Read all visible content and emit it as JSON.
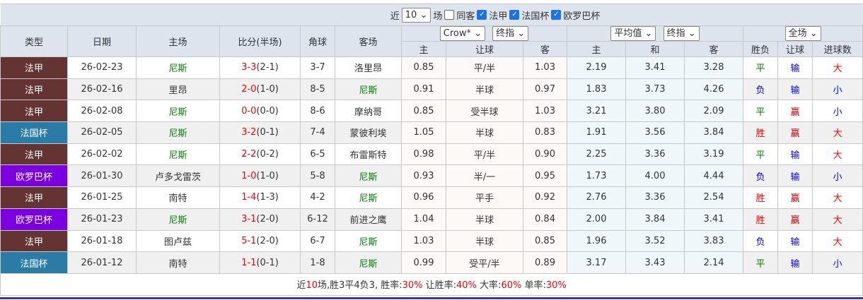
{
  "team_title": "尼斯",
  "filters": {
    "recent_prefix": "近",
    "recent_count": "10",
    "recent_suffix": "场",
    "same_away": "同客",
    "same_away_checked": false,
    "leagues": [
      {
        "label": "法甲",
        "checked": true
      },
      {
        "label": "法国杯",
        "checked": true
      },
      {
        "label": "欧罗巴杯",
        "checked": true
      }
    ]
  },
  "columns": {
    "type": "类型",
    "date": "日期",
    "home": "主场",
    "score": "比分(半场)",
    "corner": "角球",
    "away": "客场",
    "company_select": "Crow*",
    "odds_select1": "终指",
    "avg_select": "平均值",
    "odds_select2": "终指",
    "period_select": "全场",
    "o_home": "主",
    "o_handicap": "让球",
    "o_away": "客",
    "e_home": "主",
    "e_draw": "和",
    "e_away": "客",
    "res_wl": "胜负",
    "res_hc": "让球",
    "res_goals": "进球数"
  },
  "colors": {
    "法甲": "#643432",
    "法国杯": "#2a7ca6",
    "欧罗巴杯": "#7a00e0",
    "team": "#008000",
    "score": "#ff0000"
  },
  "rows": [
    {
      "type": "法甲",
      "date": "26-02-23",
      "home": "尼斯",
      "score": "3-3",
      "half": "(2-1)",
      "corner": "3-7",
      "away": "洛里昂",
      "oh": "0.85",
      "hc": "平/半",
      "oa": "1.03",
      "eh": "2.19",
      "ed": "3.41",
      "ea": "3.28",
      "wl": "平",
      "hr": "输",
      "gl": "大"
    },
    {
      "type": "法甲",
      "date": "26-02-16",
      "home": "里昂",
      "score": "2-0",
      "half": "(1-0)",
      "corner": "8-5",
      "away": "尼斯",
      "oh": "0.91",
      "hc": "半球",
      "oa": "0.97",
      "eh": "1.83",
      "ed": "3.73",
      "ea": "4.26",
      "wl": "负",
      "hr": "输",
      "gl": "小"
    },
    {
      "type": "法甲",
      "date": "26-02-08",
      "home": "尼斯",
      "score": "0-0",
      "half": "(0-0)",
      "corner": "8-6",
      "away": "摩纳哥",
      "oh": "0.85",
      "hc": "受半球",
      "oa": "1.03",
      "eh": "3.21",
      "ed": "3.80",
      "ea": "2.09",
      "wl": "平",
      "hr": "赢",
      "gl": "小"
    },
    {
      "type": "法国杯",
      "date": "26-02-05",
      "home": "尼斯",
      "score": "3-2",
      "half": "(0-1)",
      "corner": "7-4",
      "away": "蒙彼利埃",
      "oh": "1.05",
      "hc": "半球",
      "oa": "0.83",
      "eh": "1.91",
      "ed": "3.56",
      "ea": "3.84",
      "wl": "胜",
      "hr": "赢",
      "gl": "大"
    },
    {
      "type": "法甲",
      "date": "26-02-02",
      "home": "尼斯",
      "score": "2-2",
      "half": "(0-2)",
      "corner": "6-5",
      "away": "布雷斯特",
      "oh": "0.98",
      "hc": "平/半",
      "oa": "0.90",
      "eh": "2.25",
      "ed": "3.36",
      "ea": "3.19",
      "wl": "平",
      "hr": "输",
      "gl": "大"
    },
    {
      "type": "欧罗巴杯",
      "date": "26-01-30",
      "home": "卢多戈雷茨",
      "score": "1-0",
      "half": "(1-0)",
      "corner": "5-8",
      "away": "尼斯",
      "oh": "0.93",
      "hc": "半/一",
      "oa": "0.95",
      "eh": "1.73",
      "ed": "4.00",
      "ea": "4.44",
      "wl": "负",
      "hr": "输",
      "gl": "小"
    },
    {
      "type": "法甲",
      "date": "26-01-25",
      "home": "南特",
      "score": "1-4",
      "half": "(1-3)",
      "corner": "4-2",
      "away": "尼斯",
      "oh": "0.96",
      "hc": "平手",
      "oa": "0.92",
      "eh": "2.76",
      "ed": "3.36",
      "ea": "2.54",
      "wl": "胜",
      "hr": "赢",
      "gl": "大"
    },
    {
      "type": "欧罗巴杯",
      "date": "26-01-23",
      "home": "尼斯",
      "score": "3-1",
      "half": "(2-0)",
      "corner": "6-12",
      "away": "前进之鹰",
      "oh": "1.04",
      "hc": "半球",
      "oa": "0.84",
      "eh": "2.00",
      "ed": "3.84",
      "ea": "3.41",
      "wl": "胜",
      "hr": "赢",
      "gl": "大"
    },
    {
      "type": "法甲",
      "date": "26-01-18",
      "home": "图卢兹",
      "score": "5-1",
      "half": "(2-0)",
      "corner": "6-7",
      "away": "尼斯",
      "oh": "1.03",
      "hc": "半球",
      "oa": "0.85",
      "eh": "1.96",
      "ed": "3.52",
      "ea": "3.83",
      "wl": "负",
      "hr": "输",
      "gl": "大"
    },
    {
      "type": "法国杯",
      "date": "26-01-12",
      "home": "南特",
      "score": "1-1",
      "half": "(0-1)",
      "corner": "1-8",
      "away": "尼斯",
      "oh": "0.99",
      "hc": "受平/半",
      "oa": "0.89",
      "eh": "3.17",
      "ed": "3.43",
      "ea": "2.14",
      "wl": "平",
      "hr": "输",
      "gl": "小"
    }
  ],
  "summary": {
    "p1": "近",
    "n": "10",
    "p2": "场,胜3平4负3, 胜率:",
    "win": "30%",
    "p3": " 让胜率:",
    "hcwin": "40%",
    "p4": " 大率:",
    "big": "60%",
    "p5": " 单率:",
    "odd": "30%"
  }
}
